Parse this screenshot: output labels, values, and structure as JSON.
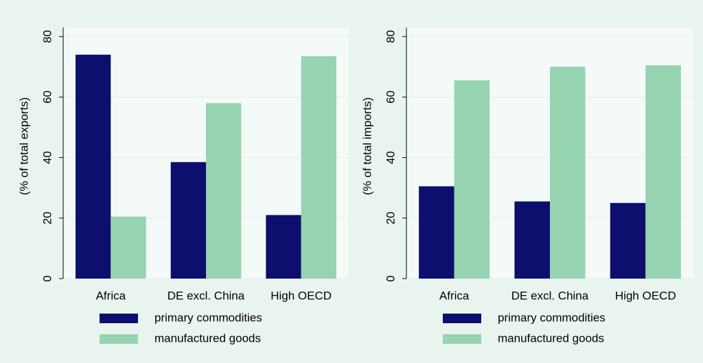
{
  "chart_data": [
    {
      "type": "bar",
      "y_label": "(% of total exports)",
      "categories": [
        "Africa",
        "DE excl. China",
        "High OECD"
      ],
      "series": [
        {
          "name": "primary commodities",
          "color": "#0c0f6e",
          "values": [
            74,
            38.5,
            21
          ]
        },
        {
          "name": "manufactured goods",
          "color": "#96d3b1",
          "values": [
            20.5,
            58,
            73.5
          ]
        }
      ],
      "ylim": [
        0,
        83
      ],
      "yticks": [
        0,
        20,
        40,
        60,
        80
      ],
      "grid": true
    },
    {
      "type": "bar",
      "y_label": "(% of total imports)",
      "categories": [
        "Africa",
        "DE excl. China",
        "High OECD"
      ],
      "series": [
        {
          "name": "primary commodities",
          "color": "#0c0f6e",
          "values": [
            30.5,
            25.5,
            25
          ]
        },
        {
          "name": "manufactured goods",
          "color": "#96d3b1",
          "values": [
            65.5,
            70,
            70.5
          ]
        }
      ],
      "ylim": [
        0,
        83
      ],
      "yticks": [
        0,
        20,
        40,
        60,
        80
      ],
      "grid": true
    }
  ]
}
